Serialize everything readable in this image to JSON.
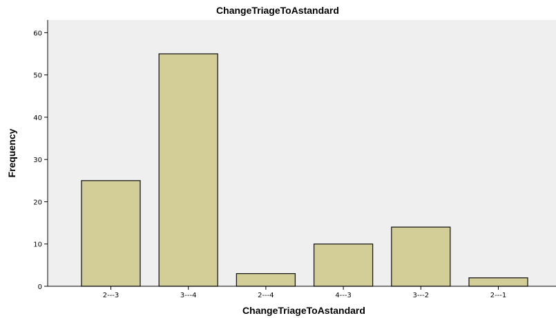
{
  "chart_data": {
    "type": "bar",
    "title": "ChangeTriageToAstandard",
    "xlabel": "ChangeTriageToAstandard",
    "ylabel": "Frequency",
    "categories": [
      "2---3",
      "3---4",
      "2---4",
      "4---3",
      "3---2",
      "2---1"
    ],
    "values": [
      25,
      55,
      3,
      10,
      14,
      2
    ],
    "ylim": [
      0,
      63
    ],
    "yticks": [
      0,
      10,
      20,
      30,
      40,
      50,
      60
    ],
    "grid": false,
    "colors": {
      "bar_fill": "#d3ce98",
      "bar_stroke": "#1a1a1a",
      "plot_background": "#efefef",
      "page_background": "#ffffff"
    }
  }
}
